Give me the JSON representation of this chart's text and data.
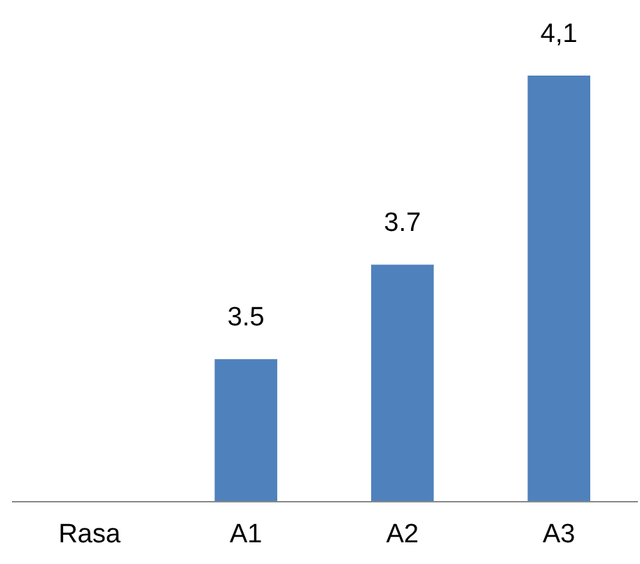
{
  "chart_data": {
    "type": "bar",
    "categories": [
      "Rasa",
      "A1",
      "A2",
      "A3"
    ],
    "values": [
      null,
      3.5,
      3.7,
      4.1
    ],
    "value_labels": [
      null,
      "3.5",
      "3.7",
      "4,1"
    ],
    "ylim": [
      3.2,
      4.1
    ],
    "color": "#4f81bd"
  }
}
